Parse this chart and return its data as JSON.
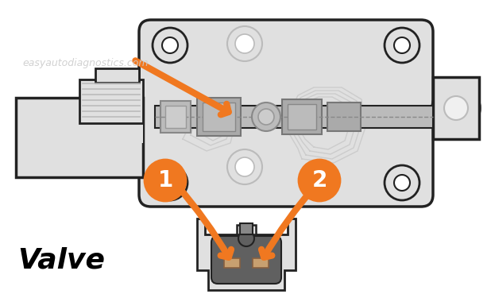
{
  "background_color": "#ffffff",
  "fig_width": 6.18,
  "fig_height": 3.75,
  "dpi": 100,
  "orange_color": "#F07820",
  "dark_gray": "#606060",
  "light_gray": "#E0E0E0",
  "mid_gray": "#BBBBBB",
  "outline_color": "#222222",
  "watermark_text": "easyautodiagnostics.com",
  "watermark_color": "#CCCCCC",
  "valve_text": "Valve",
  "circle1_text": "1",
  "circle2_text": "2"
}
